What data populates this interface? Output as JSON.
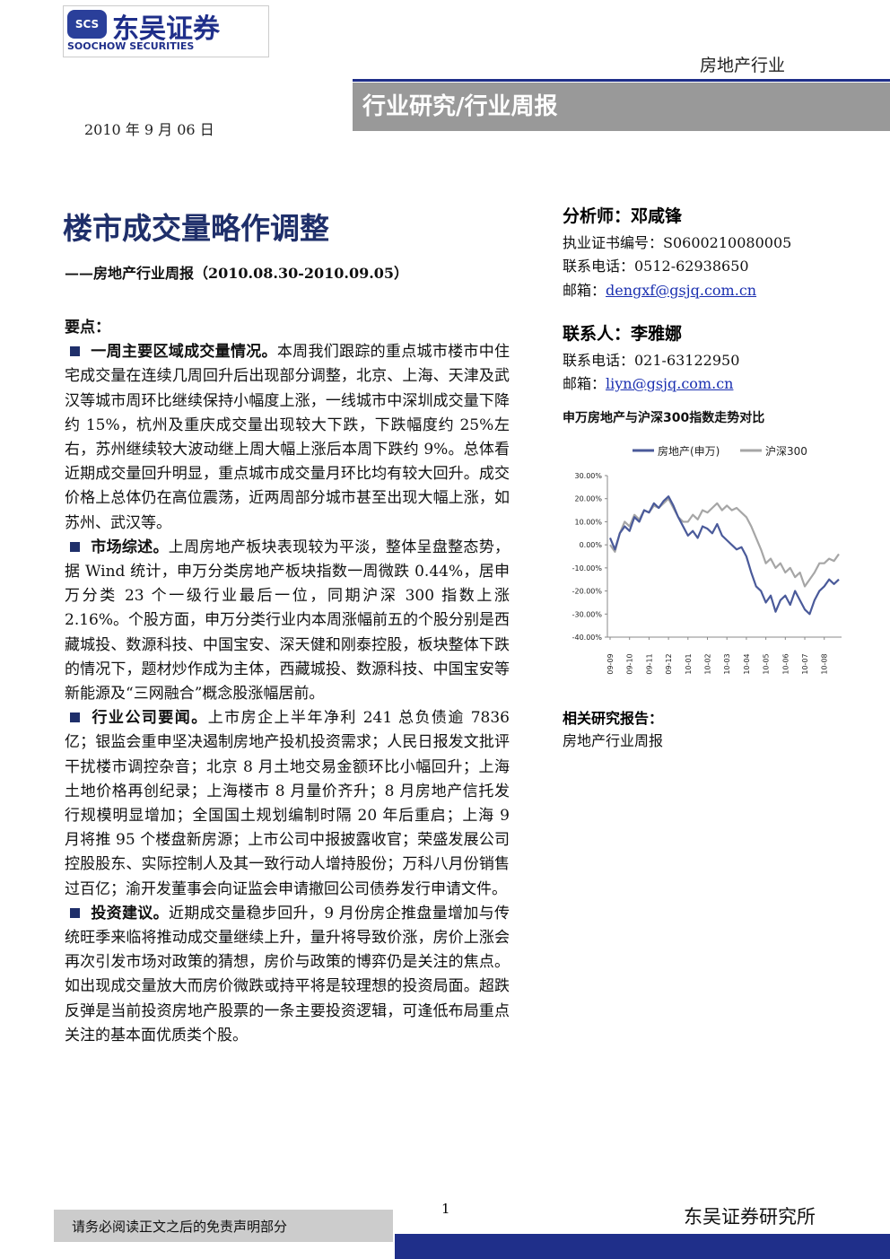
{
  "logo": {
    "mark": "SCS",
    "name": "东吴证券",
    "english": "SOOCHOW SECURITIES"
  },
  "header": {
    "sector": "房地产行业",
    "category": "行业研究/行业周报",
    "date": "2010 年 9 月 06 日"
  },
  "title": "楼市成交量略作调整",
  "subtitle": "——房地产行业周报（2010.08.30-2010.09.05）",
  "summary_label": "要点：",
  "points": [
    {
      "heading": "一周主要区域成交量情况。",
      "text": "本周我们跟踪的重点城市楼市中住宅成交量在连续几周回升后出现部分调整，北京、上海、天津及武汉等城市周环比继续保持小幅度上涨，一线城市中深圳成交量下降约 15%，杭州及重庆成交量出现较大下跌，下跌幅度约 25%左右，苏州继续较大波动继上周大幅上涨后本周下跌约 9%。总体看近期成交量回升明显，重点城市成交量月环比均有较大回升。成交价格上总体仍在高位震荡，近两周部分城市甚至出现大幅上涨，如苏州、武汉等。"
    },
    {
      "heading": "市场综述。",
      "text": "上周房地产板块表现较为平淡，整体呈盘整态势，据 Wind 统计，申万分类房地产板块指数一周微跌 0.44%，居申万分类 23 个一级行业最后一位，同期沪深 300 指数上涨 2.16%。个股方面，申万分类行业内本周涨幅前五的个股分别是西藏城投、数源科技、中国宝安、深天健和刚泰控股，板块整体下跌的情况下，题材炒作成为主体，西藏城投、数源科技、中国宝安等新能源及“三网融合”概念股涨幅居前。"
    },
    {
      "heading": "行业公司要闻。",
      "text": "上市房企上半年净利 241 总负债逾 7836 亿；银监会重申坚决遏制房地产投机投资需求；人民日报发文批评干扰楼市调控杂音；北京 8 月土地交易金额环比小幅回升；上海土地价格再创纪录；上海楼市 8 月量价齐升；8 月房地产信托发行规模明显增加；全国国土规划编制时隔 20 年后重启；上海 9 月将推 95 个楼盘新房源；上市公司中报披露收官；荣盛发展公司控股股东、实际控制人及其一致行动人增持股份；万科八月份销售过百亿；渝开发董事会向证监会申请撤回公司债券发行申请文件。"
    },
    {
      "heading": "投资建议。",
      "text": "近期成交量稳步回升，9 月份房企推盘量增加与传统旺季来临将推动成交量继续上升，量升将导致价涨，房价上涨会再次引发市场对政策的猜想，房价与政策的博弈仍是关注的焦点。如出现成交量放大而房价微跌或持平将是较理想的投资局面。超跌反弹是当前投资房地产股票的一条主要投资逻辑，可逢低布局重点关注的基本面优质类个股。"
    }
  ],
  "analyst": {
    "label": "分析师：邓咸锋",
    "license": "执业证书编号：S0600210080005",
    "phone": "联系电话：0512-62938650",
    "email_label": "邮箱：",
    "email": "dengxf@gsjq.com.cn"
  },
  "contact": {
    "label": "联系人：李雅娜",
    "phone": "联系电话：021-63122950",
    "email_label": "邮箱：",
    "email": "liyn@gsjq.com.cn"
  },
  "chart_data": {
    "type": "line",
    "title": "申万房地产与沪深300指数走势对比",
    "categories": [
      "09-09",
      null,
      null,
      null,
      "09-10",
      null,
      null,
      null,
      "09-11",
      null,
      null,
      null,
      "09-12",
      null,
      null,
      null,
      "10-01",
      null,
      null,
      null,
      "10-02",
      null,
      null,
      null,
      "10-03",
      null,
      null,
      null,
      "10-04",
      null,
      null,
      null,
      "10-05",
      null,
      null,
      null,
      "10-06",
      null,
      null,
      null,
      "10-07",
      null,
      null,
      null,
      "10-08",
      null,
      null,
      null
    ],
    "series": [
      {
        "name": "房地产(申万)",
        "color": "#4a5a9a",
        "values": [
          3,
          -2,
          5,
          8,
          6,
          12,
          10,
          15,
          14,
          18,
          16,
          19,
          21,
          17,
          12,
          8,
          4,
          6,
          3,
          8,
          7,
          5,
          9,
          4,
          2,
          0,
          -2,
          -1,
          -5,
          -12,
          -18,
          -20,
          -25,
          -22,
          -29,
          -24,
          -22,
          -26,
          -20,
          -24,
          -28,
          -30,
          -24,
          -20,
          -18,
          -15,
          -17,
          -15
        ]
      },
      {
        "name": "沪深300",
        "color": "#a6a6a6",
        "values": [
          0,
          -3,
          5,
          10,
          8,
          13,
          11,
          15,
          14,
          17,
          16,
          18,
          20,
          16,
          12,
          10,
          10,
          13,
          11,
          15,
          14,
          16,
          18,
          15,
          17,
          15,
          16,
          14,
          12,
          8,
          3,
          -2,
          -8,
          -6,
          -10,
          -8,
          -12,
          -10,
          -14,
          -12,
          -18,
          -15,
          -12,
          -8,
          -8,
          -6,
          -7,
          -4
        ]
      }
    ],
    "ylim": [
      -40,
      30
    ],
    "yticks": [
      {
        "value": -40,
        "label": "-40.00%"
      },
      {
        "value": -30,
        "label": "-30.00%"
      },
      {
        "value": -20,
        "label": "-20.00%"
      },
      {
        "value": -10,
        "label": "-10.00%"
      },
      {
        "value": 0,
        "label": "0.00%"
      },
      {
        "value": 10,
        "label": "10.00%"
      },
      {
        "value": 20,
        "label": "20.00%"
      },
      {
        "value": 30,
        "label": "30.00%"
      }
    ]
  },
  "related": {
    "label": "相关研究报告：",
    "items": [
      "房地产行业周报"
    ]
  },
  "footer": {
    "disclaimer": "请务必阅读正文之后的免责声明部分",
    "page": "1",
    "institute": "东吴证券研究所"
  }
}
